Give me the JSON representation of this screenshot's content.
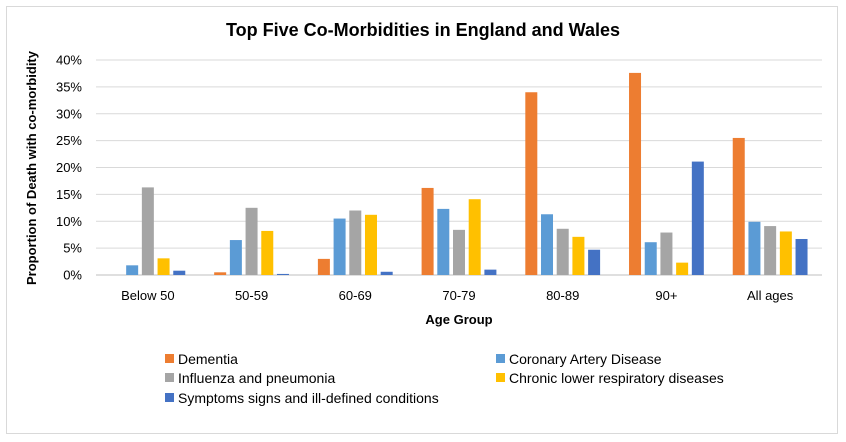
{
  "chart_data": {
    "type": "bar",
    "title": "Top Five Co-Morbidities in England and Wales",
    "xlabel": "Age Group",
    "ylabel": "Proportion of Death with co-morbidity",
    "ylim": [
      0,
      40
    ],
    "yticks": [
      "0%",
      "5%",
      "10%",
      "15%",
      "20%",
      "25%",
      "30%",
      "35%",
      "40%"
    ],
    "grid": true,
    "legend_position": "bottom",
    "categories": [
      "Below 50",
      "50-59",
      "60-69",
      "70-79",
      "80-89",
      "90+",
      "All ages"
    ],
    "series": [
      {
        "name": "Dementia",
        "color": "#ED7D31",
        "values": [
          0,
          0.5,
          3.0,
          16.2,
          34.0,
          37.6,
          25.5
        ]
      },
      {
        "name": "Coronary Artery Disease",
        "color": "#5B9BD5",
        "values": [
          1.8,
          6.5,
          10.5,
          12.3,
          11.3,
          6.1,
          9.9
        ]
      },
      {
        "name": "Influenza and pneumonia",
        "color": "#A5A5A5",
        "values": [
          16.3,
          12.5,
          12.0,
          8.4,
          8.6,
          7.9,
          9.1
        ]
      },
      {
        "name": "Chronic lower respiratory diseases",
        "color": "#FFC000",
        "values": [
          3.1,
          8.2,
          11.2,
          14.1,
          7.1,
          2.3,
          8.1
        ]
      },
      {
        "name": "Symptoms signs and ill-defined conditions",
        "color": "#4472C4",
        "values": [
          0.8,
          0.2,
          0.6,
          1.0,
          4.7,
          21.1,
          6.7
        ]
      }
    ]
  }
}
